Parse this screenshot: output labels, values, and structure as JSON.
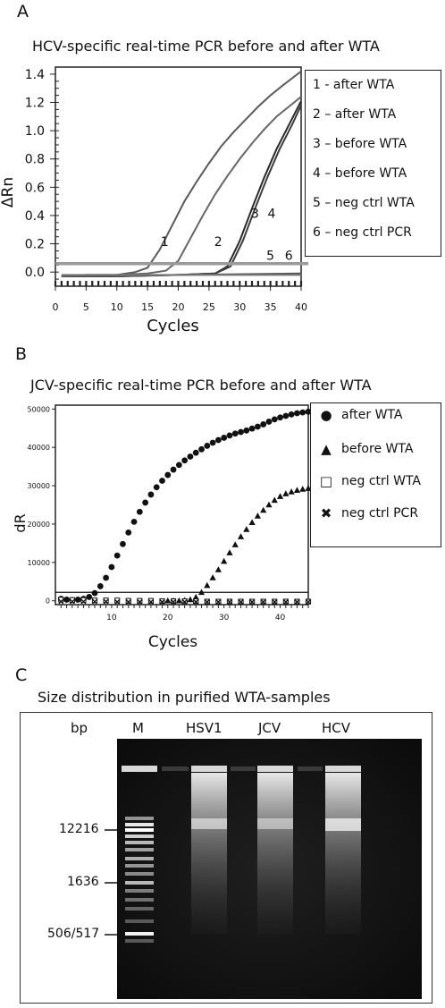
{
  "panels": {
    "a": {
      "letter": "A",
      "title": "HCV-specific real-time PCR before and after WTA",
      "legend": [
        "1 - after WTA",
        "2 – after WTA",
        "3 – before WTA",
        "4 – before WTA",
        "5 – neg ctrl WTA",
        "6 – neg ctrl PCR"
      ]
    },
    "b": {
      "letter": "B",
      "title": "JCV-specific real-time PCR before and after WTA",
      "legend": [
        {
          "symbol": "●",
          "label": "after WTA"
        },
        {
          "symbol": "▲",
          "label": "before WTA"
        },
        {
          "symbol": "□",
          "label": "neg ctrl WTA"
        },
        {
          "symbol": "✖",
          "label": "neg ctrl PCR"
        }
      ]
    },
    "c": {
      "letter": "C",
      "title": "Size distribution in purified WTA-samples",
      "header_bp": "bp",
      "lanes": [
        "M",
        "HSV1",
        "JCV",
        "HCV"
      ],
      "markers": [
        "12216",
        "1636",
        "506/517"
      ]
    }
  },
  "chart_data": [
    {
      "type": "line",
      "title": "HCV-specific real-time PCR before and after WTA",
      "xlabel": "Cycles",
      "ylabel": "ΔRn",
      "xlim": [
        0,
        40
      ],
      "ylim": [
        -0.1,
        1.45
      ],
      "xticks": [
        0,
        5,
        10,
        15,
        20,
        25,
        30,
        35,
        40
      ],
      "yticks": [
        0.0,
        0.2,
        0.4,
        0.6,
        0.8,
        1.0,
        1.2,
        1.4
      ],
      "threshold": 0.06,
      "curve_labels": [
        {
          "text": "1",
          "x": 17.8,
          "y": 0.16
        },
        {
          "text": "2",
          "x": 26.5,
          "y": 0.16
        },
        {
          "text": "3",
          "x": 32.5,
          "y": 0.36
        },
        {
          "text": "4",
          "x": 35.2,
          "y": 0.36
        },
        {
          "text": "5",
          "x": 35.0,
          "y": 0.06
        },
        {
          "text": "6",
          "x": 38.0,
          "y": 0.06
        }
      ],
      "series": [
        {
          "name": "1 - after WTA",
          "color": "#5a5a5a",
          "x": [
            1,
            5,
            10,
            13,
            15,
            17,
            19,
            21,
            23,
            25,
            27,
            29,
            31,
            33,
            35,
            37,
            40
          ],
          "y": [
            -0.03,
            -0.02,
            -0.02,
            0.0,
            0.03,
            0.16,
            0.33,
            0.5,
            0.64,
            0.77,
            0.89,
            0.99,
            1.08,
            1.17,
            1.25,
            1.32,
            1.42
          ]
        },
        {
          "name": "2 – after WTA",
          "color": "#666666",
          "x": [
            1,
            5,
            10,
            15,
            18,
            20,
            22,
            24,
            26,
            28,
            30,
            32,
            34,
            36,
            38,
            40
          ],
          "y": [
            -0.03,
            -0.02,
            -0.02,
            -0.01,
            0.01,
            0.08,
            0.24,
            0.4,
            0.55,
            0.68,
            0.8,
            0.91,
            1.01,
            1.1,
            1.17,
            1.24
          ]
        },
        {
          "name": "3 – before WTA",
          "color": "#2a2a2a",
          "x": [
            1,
            10,
            20,
            26,
            28,
            30,
            32,
            34,
            36,
            38,
            40
          ],
          "y": [
            -0.03,
            -0.03,
            -0.02,
            -0.01,
            0.04,
            0.22,
            0.45,
            0.67,
            0.87,
            1.04,
            1.21
          ]
        },
        {
          "name": "4 – before WTA",
          "color": "#3c3c3c",
          "x": [
            1,
            10,
            20,
            26,
            28.5,
            30.5,
            32.5,
            34.5,
            36.5,
            38.5,
            40
          ],
          "y": [
            -0.03,
            -0.03,
            -0.02,
            -0.01,
            0.04,
            0.22,
            0.45,
            0.67,
            0.87,
            1.04,
            1.18
          ]
        },
        {
          "name": "5 – neg ctrl WTA",
          "color": "#555555",
          "x": [
            1,
            20,
            40
          ],
          "y": [
            -0.03,
            -0.02,
            -0.01
          ]
        },
        {
          "name": "6 – neg ctrl PCR",
          "color": "#777777",
          "x": [
            1,
            20,
            40
          ],
          "y": [
            -0.02,
            -0.02,
            -0.02
          ]
        }
      ]
    },
    {
      "type": "scatter",
      "title": "JCV-specific real-time PCR before and after WTA",
      "xlabel": "Cycles",
      "ylabel": "dR",
      "xlim": [
        0,
        45
      ],
      "ylim": [
        -1000,
        51000
      ],
      "xticks": [
        10,
        20,
        30,
        40
      ],
      "yticks": [
        0,
        10000,
        20000,
        30000,
        40000,
        50000
      ],
      "threshold": 2200,
      "series": [
        {
          "name": "after WTA",
          "marker": "circle",
          "x": [
            1,
            2,
            3,
            4,
            5,
            6,
            7,
            8,
            9,
            10,
            11,
            12,
            13,
            14,
            15,
            16,
            17,
            18,
            19,
            20,
            21,
            22,
            23,
            24,
            25,
            26,
            27,
            28,
            29,
            30,
            31,
            32,
            33,
            34,
            35,
            36,
            37,
            38,
            39,
            40,
            41,
            42,
            43,
            44,
            45
          ],
          "y": [
            500,
            300,
            200,
            300,
            500,
            1000,
            2000,
            3800,
            6000,
            8800,
            11800,
            14800,
            17800,
            20600,
            23200,
            25600,
            27700,
            29600,
            31300,
            32800,
            34200,
            35400,
            36600,
            37600,
            38600,
            39500,
            40400,
            41200,
            41900,
            42500,
            43100,
            43600,
            44000,
            44400,
            44900,
            45400,
            46000,
            46700,
            47300,
            47800,
            48200,
            48600,
            48900,
            49100,
            49300
          ]
        },
        {
          "name": "before WTA",
          "marker": "triangle",
          "x": [
            20,
            21,
            22,
            23,
            24,
            25,
            26,
            27,
            28,
            29,
            30,
            31,
            32,
            33,
            34,
            35,
            36,
            37,
            38,
            39,
            40,
            41,
            42,
            43,
            44,
            45
          ],
          "y": [
            0,
            0,
            0,
            100,
            300,
            900,
            2200,
            4000,
            6000,
            8100,
            10300,
            12500,
            14600,
            16700,
            18600,
            20400,
            22100,
            23600,
            25000,
            26200,
            27200,
            27900,
            28400,
            28800,
            29100,
            29300
          ]
        },
        {
          "name": "neg ctrl WTA",
          "marker": "square",
          "x": [
            1,
            3,
            5,
            7,
            9,
            11,
            13,
            15,
            17,
            19,
            21,
            23,
            25,
            27,
            29,
            31,
            33,
            35,
            37,
            39,
            41,
            43,
            45
          ],
          "y": [
            300,
            200,
            200,
            100,
            100,
            100,
            0,
            0,
            0,
            -100,
            -100,
            -100,
            -100,
            -200,
            -200,
            -200,
            -200,
            -200,
            -200,
            -200,
            -200,
            -200,
            -200
          ]
        },
        {
          "name": "neg ctrl PCR",
          "marker": "x",
          "x": [
            1,
            3,
            5,
            7,
            9,
            11,
            13,
            15,
            17,
            19,
            21,
            23,
            25,
            27,
            29,
            31,
            33,
            35,
            37,
            39,
            41,
            43,
            45
          ],
          "y": [
            -200,
            -200,
            -200,
            -200,
            -200,
            -300,
            -300,
            -300,
            -300,
            -300,
            -300,
            -300,
            -300,
            -300,
            -300,
            -300,
            -300,
            -300,
            -300,
            -300,
            -300,
            -300,
            -300
          ]
        }
      ]
    }
  ]
}
